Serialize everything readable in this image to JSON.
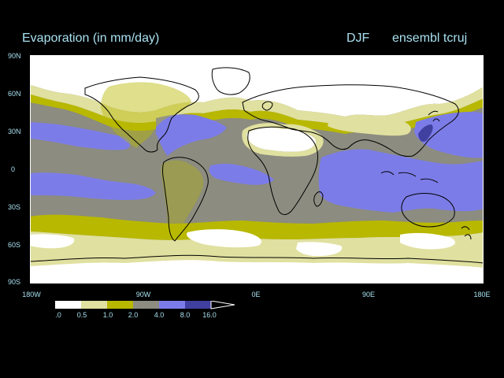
{
  "title": "Evaporation (in mm/day)",
  "season": "DJF",
  "dataset": "ensembl tcruj",
  "y_ticks": [
    "90N",
    "60N",
    "30N",
    "0",
    "30S",
    "60S",
    "90S"
  ],
  "x_ticks": [
    "180W",
    "90W",
    "0E",
    "90E",
    "180E"
  ],
  "legend": {
    "labels": [
      ".0",
      "0.5",
      "1.0",
      "2.0",
      "4.0",
      "8.0",
      "16.0"
    ],
    "colors": [
      "#ffffff",
      "#e0e0a0",
      "#b8b800",
      "#8c8c80",
      "#7c7ce8",
      "#4040a0"
    ]
  },
  "colors": {
    "text": "#a8e0f0",
    "background": "#000000",
    "c_lt0_5": "#ffffff",
    "c_0_5_1": "#e0e0a0",
    "c_1_2": "#b8b800",
    "c_2_4": "#8c8c80",
    "c_4_8": "#7c7ce8",
    "c_8_16": "#4040a0"
  }
}
